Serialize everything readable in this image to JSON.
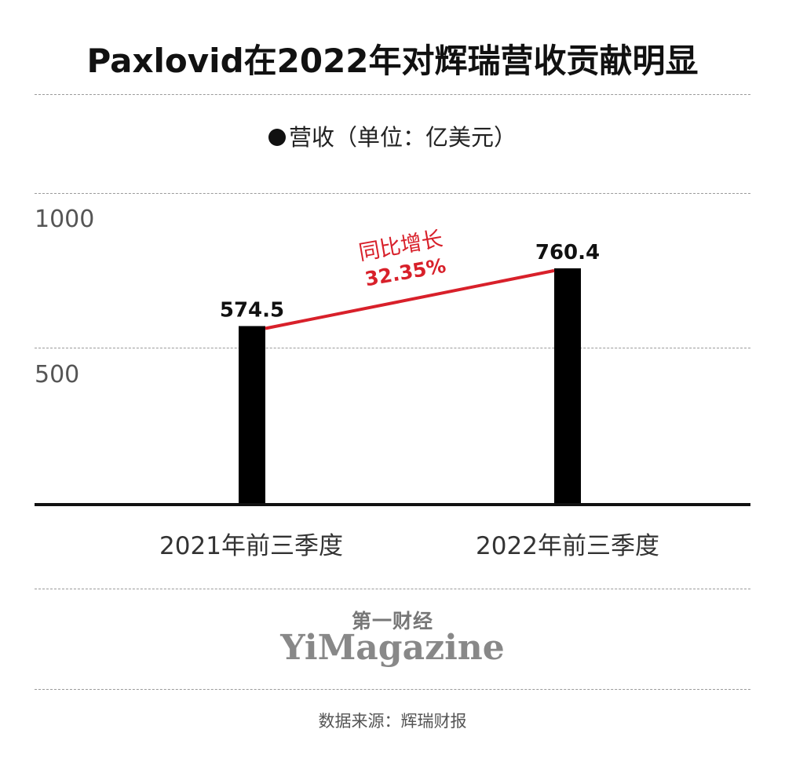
{
  "title": "Paxlovid在2022年对辉瑞营收贡献明显",
  "legend": {
    "label": "营收（单位：亿美元）"
  },
  "brand": {
    "cn": "第一财经",
    "en": "YiMagazine"
  },
  "source": "数据来源：辉瑞财报",
  "colors": {
    "bar": "#000000",
    "growth_line": "#d8202a",
    "axis": "#111111",
    "grid": "#9a9a9a"
  },
  "chart_data": {
    "type": "bar",
    "categories": [
      "2021年前三季度",
      "2022年前三季度"
    ],
    "values": [
      574.5,
      760.4
    ],
    "value_labels": [
      "574.5",
      "760.4"
    ],
    "series": [
      {
        "name": "营收",
        "values": [
          574.5,
          760.4
        ]
      }
    ],
    "ylim": [
      0,
      1000
    ],
    "yticks": [
      500,
      1000
    ],
    "ytick_labels": [
      "500",
      "1000"
    ],
    "grid": true,
    "annotation": {
      "label": "同比增长",
      "value": "32.35%"
    },
    "title": "Paxlovid在2022年对辉瑞营收贡献明显",
    "xlabel": "",
    "ylabel": ""
  }
}
